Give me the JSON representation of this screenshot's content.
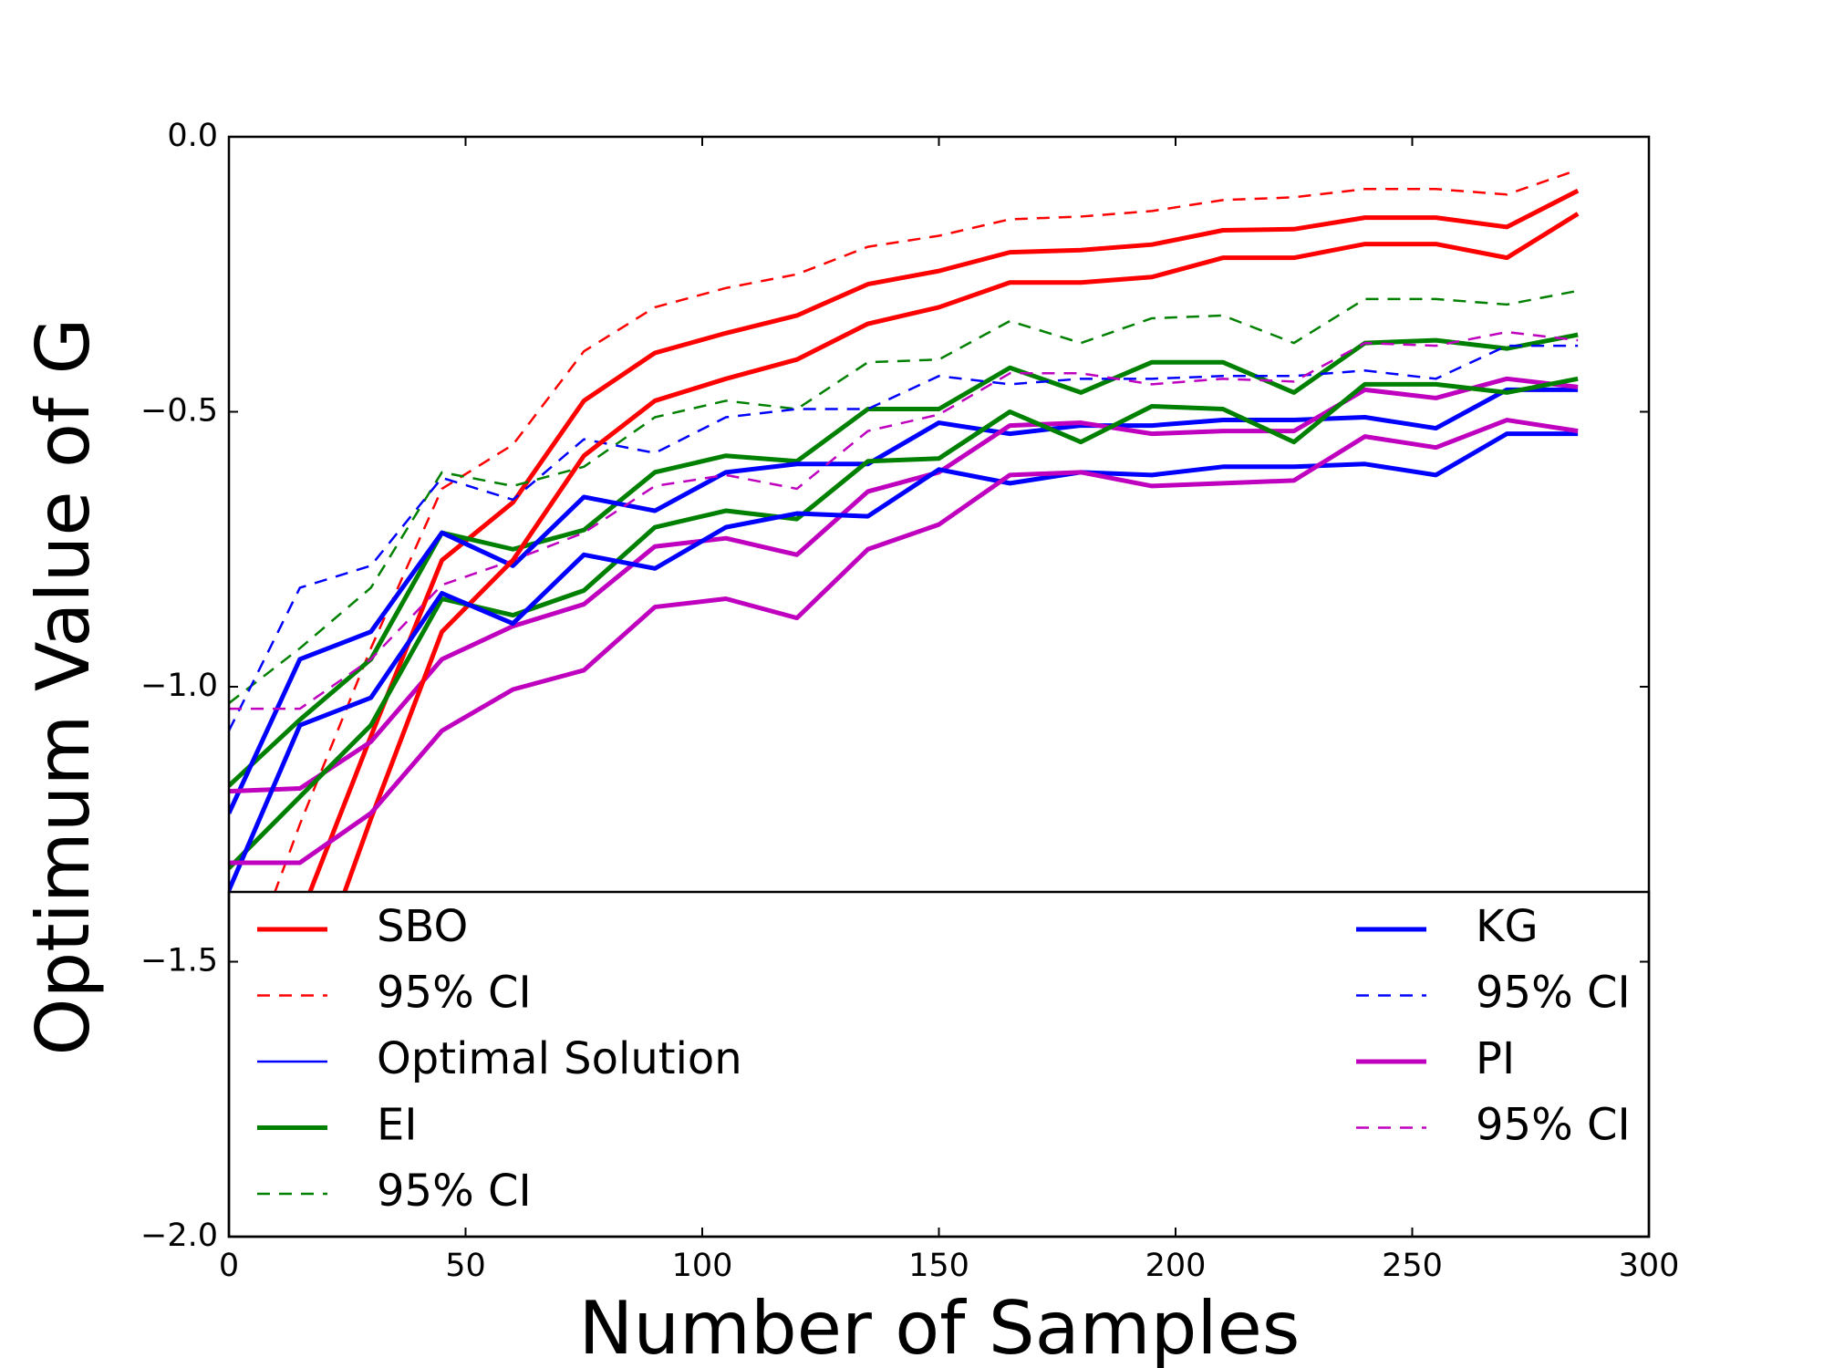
{
  "chart_data": {
    "type": "line",
    "xlabel": "Number of Samples",
    "ylabel": "Optimum Value of G",
    "x": [
      0,
      15,
      30,
      45,
      60,
      75,
      90,
      105,
      120,
      135,
      150,
      165,
      180,
      195,
      210,
      225,
      240,
      255,
      270,
      285
    ],
    "xlim": [
      0,
      300
    ],
    "xticks": [
      0,
      50,
      100,
      150,
      200,
      250,
      300
    ],
    "ylim": [
      -2.0,
      0.0
    ],
    "yticks": [
      {
        "value": 0.0,
        "label": "0.0"
      },
      {
        "value": -0.5,
        "label": "−0.5"
      },
      {
        "value": -1.0,
        "label": "−1.0"
      },
      {
        "value": -1.5,
        "label": "−1.5"
      },
      {
        "value": -2.0,
        "label": "−2.0"
      }
    ],
    "legend": "lower",
    "series": [
      {
        "name": "SBO",
        "color": "#ff0000",
        "style": "solid",
        "values": [
          -1.9,
          -1.42,
          -1.09,
          -0.77,
          -0.665,
          -0.48,
          -0.393,
          -0.357,
          -0.325,
          -0.268,
          -0.244,
          -0.21,
          -0.206,
          -0.196,
          -0.17,
          -0.168,
          -0.147,
          -0.147,
          -0.164,
          -0.098
        ]
      },
      {
        "name": "95% CI",
        "color": "#ff0000",
        "style": "dashed",
        "values": [
          -1.6,
          -1.25,
          -0.93,
          -0.64,
          -0.56,
          -0.39,
          -0.31,
          -0.275,
          -0.25,
          -0.2,
          -0.18,
          -0.15,
          -0.145,
          -0.135,
          -0.115,
          -0.11,
          -0.095,
          -0.095,
          -0.105,
          -0.06
        ]
      },
      {
        "name": "Optimal Solution",
        "color": "#0000ff",
        "style": "thin",
        "values": [
          null,
          null,
          null,
          null,
          null,
          null,
          null,
          null,
          null,
          null,
          null,
          null,
          null,
          null,
          null,
          null,
          null,
          null,
          null,
          null
        ]
      },
      {
        "name": "EI",
        "color": "#008000",
        "style": "solid",
        "values": [
          -1.18,
          -1.06,
          -0.95,
          -0.72,
          -0.75,
          -0.715,
          -0.61,
          -0.58,
          -0.59,
          -0.495,
          -0.495,
          -0.42,
          -0.465,
          -0.41,
          -0.41,
          -0.465,
          -0.375,
          -0.37,
          -0.385,
          -0.36
        ]
      },
      {
        "name": "95% CI",
        "color": "#008000",
        "style": "dashed",
        "values": [
          -1.03,
          -0.93,
          -0.82,
          -0.61,
          -0.635,
          -0.6,
          -0.51,
          -0.48,
          -0.495,
          -0.41,
          -0.405,
          -0.335,
          -0.375,
          -0.33,
          -0.325,
          -0.375,
          -0.295,
          -0.295,
          -0.305,
          -0.28
        ]
      },
      {
        "name": "KG",
        "color": "#0000ff",
        "style": "solid",
        "values": [
          -1.23,
          -0.95,
          -0.9,
          -0.72,
          -0.78,
          -0.655,
          -0.68,
          -0.61,
          -0.595,
          -0.595,
          -0.52,
          -0.54,
          -0.525,
          -0.525,
          -0.515,
          -0.515,
          -0.51,
          -0.53,
          -0.46,
          -0.46
        ]
      },
      {
        "name": "95% CI",
        "color": "#0000ff",
        "style": "dashed",
        "values": [
          -1.08,
          -0.82,
          -0.78,
          -0.62,
          -0.66,
          -0.55,
          -0.575,
          -0.51,
          -0.495,
          -0.495,
          -0.435,
          -0.45,
          -0.44,
          -0.44,
          -0.435,
          -0.435,
          -0.425,
          -0.44,
          -0.38,
          -0.38
        ]
      },
      {
        "name": "PI",
        "color": "#bf00bf",
        "style": "solid",
        "values": [
          -1.19,
          -1.185,
          -1.1,
          -0.95,
          -0.89,
          -0.85,
          -0.745,
          -0.73,
          -0.76,
          -0.645,
          -0.61,
          -0.525,
          -0.52,
          -0.54,
          -0.535,
          -0.535,
          -0.46,
          -0.475,
          -0.44,
          -0.455
        ]
      },
      {
        "name": "95% CI",
        "color": "#bf00bf",
        "style": "dashed",
        "values": [
          -1.04,
          -1.04,
          -0.95,
          -0.815,
          -0.77,
          -0.72,
          -0.635,
          -0.615,
          -0.64,
          -0.535,
          -0.505,
          -0.43,
          -0.43,
          -0.45,
          -0.44,
          -0.445,
          -0.375,
          -0.38,
          -0.355,
          -0.37
        ]
      }
    ],
    "extra_lower": [
      {
        "series": 0,
        "values": [
          -2.0,
          -1.6,
          -1.24,
          -0.9,
          -0.77,
          -0.58,
          -0.48,
          -0.44,
          -0.405,
          -0.34,
          -0.31,
          -0.265,
          -0.265,
          -0.255,
          -0.22,
          -0.22,
          -0.195,
          -0.195,
          -0.22,
          -0.14
        ]
      },
      {
        "series": 3,
        "values": [
          -1.33,
          -1.2,
          -1.07,
          -0.84,
          -0.87,
          -0.825,
          -0.71,
          -0.68,
          -0.695,
          -0.59,
          -0.585,
          -0.5,
          -0.555,
          -0.49,
          -0.495,
          -0.555,
          -0.45,
          -0.45,
          -0.465,
          -0.44
        ]
      },
      {
        "series": 5,
        "values": [
          -1.37,
          -1.07,
          -1.02,
          -0.83,
          -0.885,
          -0.76,
          -0.785,
          -0.71,
          -0.685,
          -0.69,
          -0.605,
          -0.63,
          -0.61,
          -0.615,
          -0.6,
          -0.6,
          -0.595,
          -0.615,
          -0.54,
          -0.54
        ]
      },
      {
        "series": 7,
        "values": [
          -1.32,
          -1.32,
          -1.23,
          -1.08,
          -1.005,
          -0.97,
          -0.855,
          -0.84,
          -0.875,
          -0.75,
          -0.705,
          -0.615,
          -0.61,
          -0.635,
          -0.63,
          -0.625,
          -0.545,
          -0.565,
          -0.515,
          -0.535
        ]
      }
    ]
  }
}
